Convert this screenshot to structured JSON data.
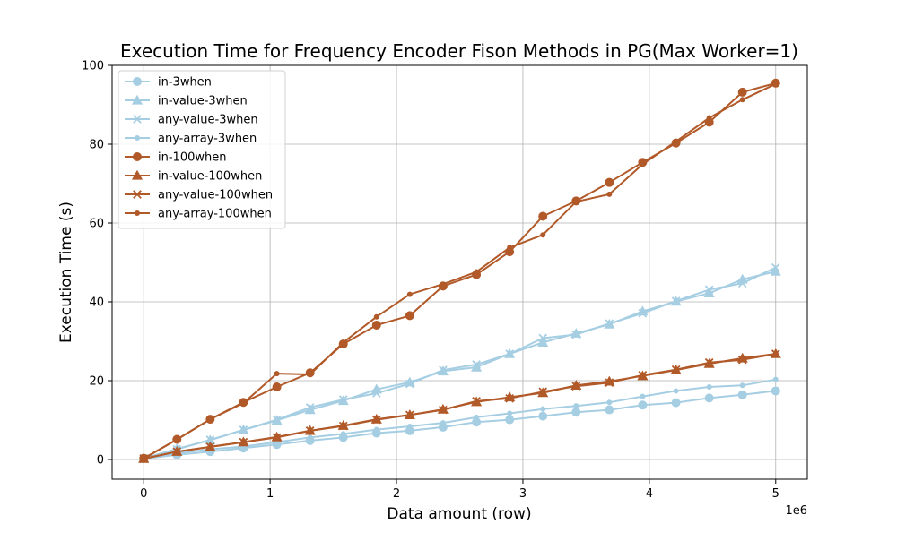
{
  "chart_data": {
    "type": "line",
    "title": "Execution Time for Frequency Encoder Fison Methods in PG(Max Worker=1)",
    "xlabel": "Data amount (row)",
    "ylabel": "Execution Time (s)",
    "x_offset_label": "1e6",
    "xlim": [
      -0.25,
      5.25
    ],
    "ylim": [
      -5,
      100
    ],
    "x_ticks": [
      0,
      1,
      2,
      3,
      4,
      5
    ],
    "x_tick_labels": [
      "0",
      "1",
      "2",
      "3",
      "4",
      "5"
    ],
    "y_ticks": [
      0,
      20,
      40,
      60,
      80,
      100
    ],
    "y_tick_labels": [
      "0",
      "20",
      "40",
      "60",
      "80",
      "100"
    ],
    "grid": true,
    "legend_position": "top-left",
    "x": [
      0,
      0.263,
      0.526,
      0.789,
      1.053,
      1.316,
      1.579,
      1.842,
      2.105,
      2.368,
      2.632,
      2.895,
      3.158,
      3.421,
      3.684,
      3.947,
      4.211,
      4.474,
      4.737,
      5.0
    ],
    "series": [
      {
        "name": "in-3when",
        "color": "#a6cee3",
        "marker": "circle",
        "values": [
          0.2,
          1.2,
          2.0,
          2.9,
          3.8,
          4.8,
          5.6,
          6.7,
          7.3,
          8.2,
          9.5,
          10.1,
          11.0,
          12.0,
          12.6,
          13.8,
          14.4,
          15.6,
          16.4,
          17.4
        ]
      },
      {
        "name": "in-value-3when",
        "color": "#a6cee3",
        "marker": "triangle",
        "values": [
          0.3,
          2.7,
          4.9,
          7.5,
          9.9,
          12.6,
          14.9,
          17.8,
          19.6,
          22.4,
          23.4,
          26.8,
          29.7,
          32.0,
          34.3,
          37.6,
          40.1,
          42.2,
          45.7,
          47.7
        ]
      },
      {
        "name": "any-value-3when",
        "color": "#a6cee3",
        "marker": "x",
        "values": [
          0.3,
          2.6,
          5.0,
          7.5,
          10.1,
          13.2,
          15.2,
          16.8,
          19.2,
          22.7,
          24.1,
          26.8,
          30.8,
          31.7,
          34.5,
          37.1,
          40.2,
          43.1,
          44.7,
          48.7
        ]
      },
      {
        "name": "any-array-3when",
        "color": "#a6cee3",
        "marker": "dot",
        "values": [
          0.2,
          1.6,
          2.6,
          3.3,
          4.4,
          5.6,
          6.5,
          7.6,
          8.4,
          9.3,
          10.7,
          11.7,
          12.8,
          13.6,
          14.5,
          16.0,
          17.4,
          18.4,
          18.8,
          20.3
        ]
      },
      {
        "name": "in-100when",
        "color": "#b15928",
        "marker": "circle",
        "values": [
          0.3,
          5.1,
          10.2,
          14.5,
          18.4,
          22.0,
          29.3,
          34.1,
          36.5,
          44.0,
          46.9,
          52.7,
          61.7,
          65.6,
          70.3,
          75.4,
          80.3,
          85.6,
          93.2,
          95.5
        ]
      },
      {
        "name": "in-value-100when",
        "color": "#b15928",
        "marker": "triangle",
        "values": [
          0.2,
          2.0,
          3.2,
          4.4,
          5.7,
          7.3,
          8.6,
          10.2,
          11.3,
          12.7,
          14.6,
          15.8,
          16.9,
          18.8,
          19.8,
          21.2,
          22.7,
          24.3,
          25.7,
          26.8
        ]
      },
      {
        "name": "any-value-100when",
        "color": "#b15928",
        "marker": "x",
        "values": [
          0.2,
          2.0,
          3.2,
          4.4,
          5.6,
          7.3,
          8.5,
          10.1,
          11.3,
          12.6,
          14.8,
          15.5,
          17.2,
          18.6,
          19.5,
          21.4,
          22.8,
          24.6,
          25.3,
          26.8
        ]
      },
      {
        "name": "any-array-100when",
        "color": "#b15928",
        "marker": "dot",
        "values": [
          0.2,
          5.1,
          10.2,
          14.3,
          21.8,
          21.6,
          29.7,
          36.2,
          41.9,
          44.5,
          47.6,
          53.8,
          57.0,
          65.4,
          67.3,
          74.9,
          80.7,
          86.7,
          91.3,
          95.3
        ]
      }
    ]
  }
}
